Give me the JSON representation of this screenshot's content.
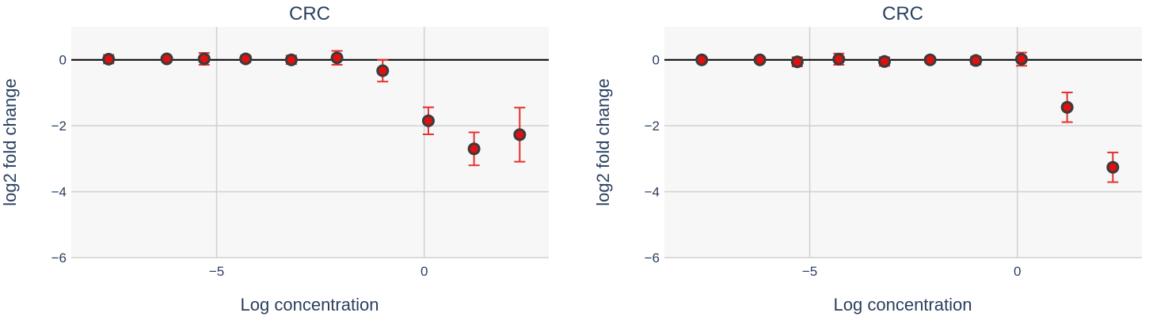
{
  "colors": {
    "plot_bg": "#f7f7f7",
    "grid": "#d0d0d0",
    "zeroline": "#000000",
    "marker_fill": "#e01010",
    "marker_edge": "#3b3b3b",
    "errorbar": "#e53030",
    "text": "#2a3f5f"
  },
  "chart_data": [
    {
      "type": "scatter",
      "title": "CRC",
      "xlabel": "Log concentration",
      "ylabel": "log2 fold change",
      "xlim": [
        -8.5,
        3.0
      ],
      "ylim": [
        -6,
        1
      ],
      "x_ticks": [
        {
          "value": -5,
          "label": "−5"
        },
        {
          "value": 0,
          "label": "0"
        }
      ],
      "y_ticks": [
        {
          "value": 0,
          "label": "0"
        },
        {
          "value": -2,
          "label": "−2"
        },
        {
          "value": -4,
          "label": "−4"
        },
        {
          "value": -6,
          "label": "−6"
        }
      ],
      "grid": true,
      "points": [
        {
          "x": -7.6,
          "y": 0.02,
          "err": 0.13
        },
        {
          "x": -6.2,
          "y": 0.03,
          "err": 0.07
        },
        {
          "x": -5.3,
          "y": 0.03,
          "err": 0.18
        },
        {
          "x": -4.3,
          "y": 0.03,
          "err": 0.1
        },
        {
          "x": -3.2,
          "y": 0.0,
          "err": 0.13
        },
        {
          "x": -2.1,
          "y": 0.06,
          "err": 0.21
        },
        {
          "x": -1.0,
          "y": -0.33,
          "err": 0.33
        },
        {
          "x": 0.1,
          "y": -1.85,
          "err": 0.41
        },
        {
          "x": 1.2,
          "y": -2.7,
          "err": 0.5
        },
        {
          "x": 2.3,
          "y": -2.27,
          "err": 0.82
        }
      ]
    },
    {
      "type": "scatter",
      "title": "CRC",
      "xlabel": "Log concentration",
      "ylabel": "log2 fold change",
      "xlim": [
        -8.5,
        3.0
      ],
      "ylim": [
        -6,
        1
      ],
      "x_ticks": [
        {
          "value": -5,
          "label": "−5"
        },
        {
          "value": 0,
          "label": "0"
        }
      ],
      "y_ticks": [
        {
          "value": 0,
          "label": "0"
        },
        {
          "value": -2,
          "label": "−2"
        },
        {
          "value": -4,
          "label": "−4"
        },
        {
          "value": -6,
          "label": "−6"
        }
      ],
      "grid": true,
      "points": [
        {
          "x": -7.6,
          "y": 0.0,
          "err": 0.05
        },
        {
          "x": -6.2,
          "y": 0.0,
          "err": 0.05
        },
        {
          "x": -5.3,
          "y": -0.06,
          "err": 0.14
        },
        {
          "x": -4.3,
          "y": 0.02,
          "err": 0.17
        },
        {
          "x": -3.2,
          "y": -0.05,
          "err": 0.13
        },
        {
          "x": -2.1,
          "y": 0.0,
          "err": 0.07
        },
        {
          "x": -1.0,
          "y": -0.02,
          "err": 0.12
        },
        {
          "x": 0.1,
          "y": 0.02,
          "err": 0.2
        },
        {
          "x": 1.2,
          "y": -1.44,
          "err": 0.45
        },
        {
          "x": 2.3,
          "y": -3.26,
          "err": 0.45
        }
      ]
    }
  ]
}
